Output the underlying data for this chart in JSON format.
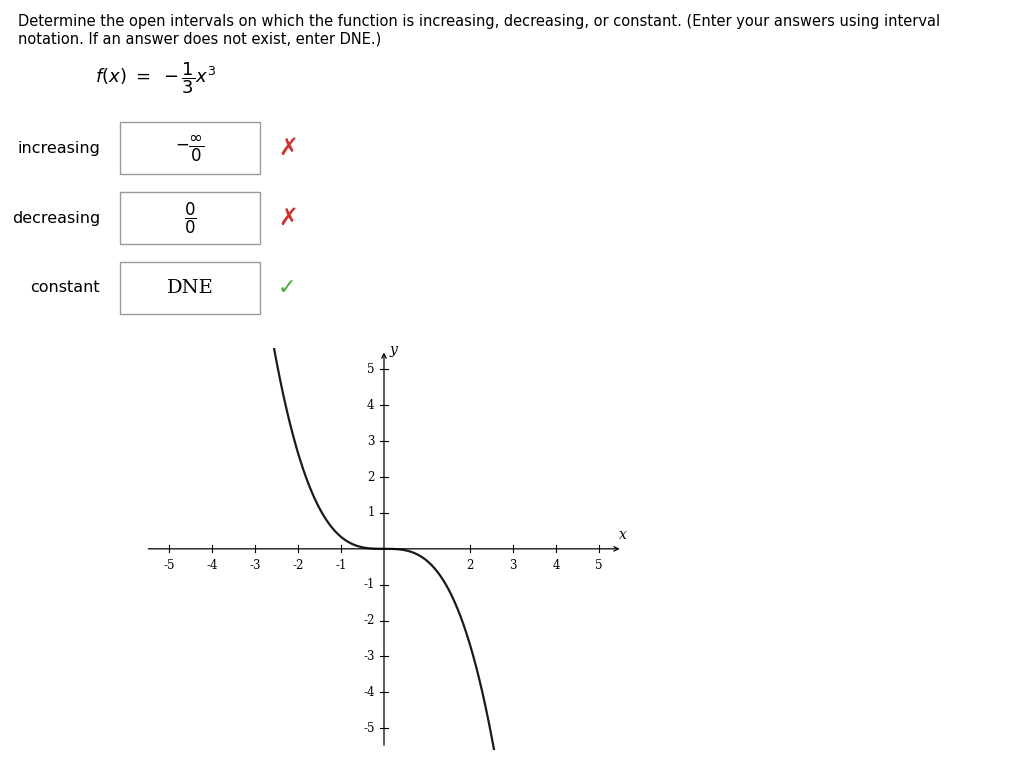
{
  "title_line1": "Determine the open intervals on which the function is increasing, decreasing, or constant. (Enter your answers using interval",
  "title_line2": "notation. If an answer does not exist, enter DNE.)",
  "formula_text": "$\\mathit{f}(\\mathit{x}) = -\\dfrac{1}{3}\\mathit{x}^3$",
  "rows": [
    {
      "label": "increasing",
      "num": "$-\\dfrac{\\infty}{0}$",
      "den": null,
      "correct": false,
      "is_frac": true
    },
    {
      "label": "decreasing",
      "num": "$\\dfrac{0}{0}$",
      "den": null,
      "correct": false,
      "is_frac": true
    },
    {
      "label": "constant",
      "num": "DNE",
      "den": null,
      "correct": true,
      "is_frac": false
    }
  ],
  "bg_color": "#ffffff",
  "curve_color": "#1a1a1a",
  "cross_color": "#cc3333",
  "check_color": "#44aa33",
  "text_color": "#000000",
  "box_edge_color": "#999999",
  "x_min": -5,
  "x_max": 5,
  "y_min": -5,
  "y_max": 5
}
